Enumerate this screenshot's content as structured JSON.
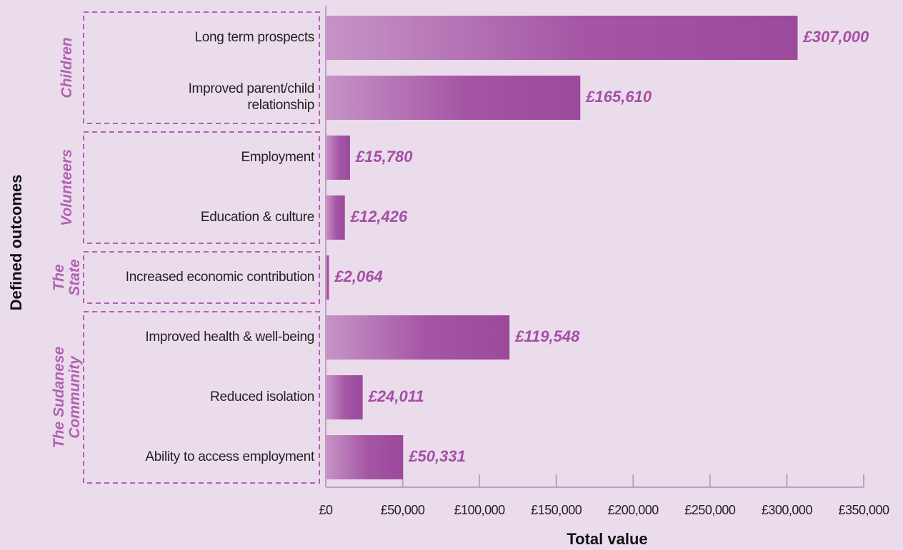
{
  "chart_data": {
    "type": "bar",
    "orientation": "horizontal",
    "x_label": "Total value",
    "y_label": "Defined outcomes",
    "color": "#9c4a9c",
    "groups": [
      {
        "name": "Children",
        "categories": [
          "Long term prospects",
          "Improved parent/child relationship"
        ],
        "values": [
          307000,
          165610
        ],
        "value_labels": [
          "£307,000",
          "£165,610"
        ]
      },
      {
        "name": "Volunteers",
        "categories": [
          "Employment",
          "Education & culture"
        ],
        "values": [
          15780,
          12426
        ],
        "value_labels": [
          "£15,780",
          "£12,426"
        ]
      },
      {
        "name": "The State",
        "categories": [
          "Increased economic contribution"
        ],
        "values": [
          2064
        ],
        "value_labels": [
          "£2,064"
        ]
      },
      {
        "name": "The Sudanese Community",
        "categories": [
          "Improved health & well-being",
          "Reduced isolation",
          "Ability to access employment"
        ],
        "values": [
          119548,
          24011,
          50331
        ],
        "value_labels": [
          "£119,548",
          "£24,011",
          "£50,331"
        ]
      }
    ],
    "xlim": [
      0,
      350000
    ],
    "xticks": [
      {
        "value": 0,
        "label": "£0"
      },
      {
        "value": 50000,
        "label": "£50,000"
      },
      {
        "value": 100000,
        "label": "£100,000"
      },
      {
        "value": 150000,
        "label": "£150,000"
      },
      {
        "value": 200000,
        "label": "£200,000"
      },
      {
        "value": 250000,
        "label": "£250,000"
      },
      {
        "value": 300000,
        "label": "£300,000"
      },
      {
        "value": 350000,
        "label": "£350,000"
      }
    ]
  }
}
